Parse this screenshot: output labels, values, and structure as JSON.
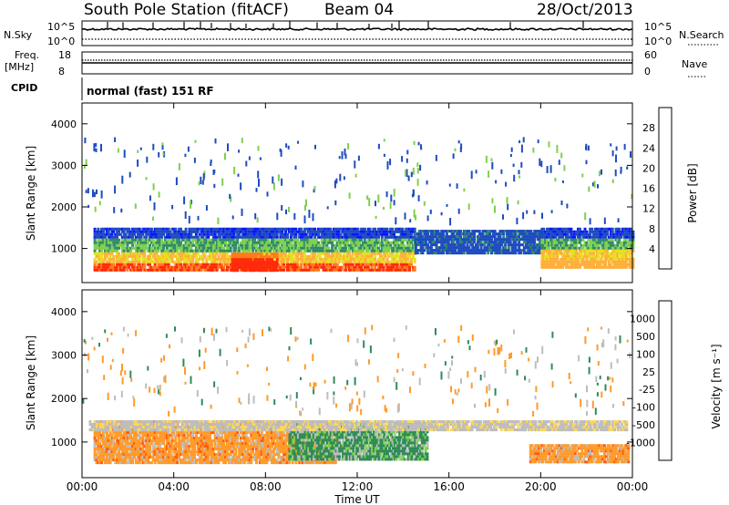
{
  "header": {
    "station": "South Pole Station (fitACF)",
    "beam": "Beam 04",
    "date": "28/Oct/2013"
  },
  "top_panels": {
    "nsky_label": "N.Sky",
    "nsky_ticks": [
      "10^5",
      "10^0"
    ],
    "nsearch_label": "N.Search",
    "nsearch_ticks": [
      "10^5",
      "10^0"
    ],
    "freq_label_1": "Freq.",
    "freq_label_2": "[MHz]",
    "freq_ticks": [
      "18",
      "8"
    ],
    "nave_label": "Nave",
    "nave_ticks": [
      "60",
      "0"
    ],
    "cpid_label": "CPID",
    "cpid_value": "normal (fast) 151 RF"
  },
  "chart_data": [
    {
      "type": "heatmap",
      "name": "power",
      "ylabel": "Slant Range [km]",
      "xlabel": "",
      "xlim": [
        0,
        24
      ],
      "ylim": [
        180,
        4500
      ],
      "y_ticks": [
        "1000",
        "2000",
        "3000",
        "4000"
      ],
      "colorbar": {
        "label": "Power [dB]",
        "ticks": [
          "4",
          "8",
          "12",
          "16",
          "20",
          "24",
          "28"
        ],
        "colors": [
          "#0a14ff",
          "#1e4bbf",
          "#2f8a6b",
          "#7fd04c",
          "#e6e01e",
          "#ffae3a",
          "#ff7a1a",
          "#ff2a0a"
        ]
      },
      "echo_bands": [
        {
          "t_start": 0.5,
          "t_end": 14.5,
          "range_low": 500,
          "range_high": 1500,
          "level": "green-red"
        },
        {
          "t_start": 14.5,
          "t_end": 20.0,
          "range_low": 900,
          "range_high": 1450,
          "level": "blue"
        },
        {
          "t_start": 20.0,
          "t_end": 24.0,
          "range_low": 550,
          "range_high": 1500,
          "level": "green-orange"
        },
        {
          "t_start": 6.5,
          "t_end": 8.5,
          "range_low": 500,
          "range_high": 900,
          "level": "red"
        }
      ]
    },
    {
      "type": "heatmap",
      "name": "velocity",
      "ylabel": "Slant Range [km]",
      "xlabel": "Time UT",
      "xlim": [
        0,
        24
      ],
      "ylim": [
        180,
        4500
      ],
      "y_ticks": [
        "1000",
        "2000",
        "3000",
        "4000"
      ],
      "x_ticks": [
        "00:00",
        "04:00",
        "08:00",
        "12:00",
        "16:00",
        "20:00",
        "00:00"
      ],
      "colorbar": {
        "label": "Velocity [m s⁻¹]",
        "ticks": [
          "1000",
          "500",
          "100",
          "25",
          "-25",
          "-100",
          "-500",
          "-1000"
        ],
        "colors": [
          "#2a38c8",
          "#3c78c8",
          "#2e8b57",
          "#7fd04c",
          "#bdbdbd",
          "#ffd65a",
          "#ff9a2a",
          "#ff5a14",
          "#ff1a0a"
        ]
      },
      "echo_bands": [
        {
          "t_start": 0.5,
          "t_end": 11.0,
          "range_low": 500,
          "range_high": 1500,
          "level": "orange"
        },
        {
          "t_start": 9.0,
          "t_end": 15.0,
          "range_low": 600,
          "range_high": 1450,
          "level": "green"
        },
        {
          "t_start": 0.3,
          "t_end": 23.7,
          "range_low": 1300,
          "range_high": 1500,
          "level": "grey"
        },
        {
          "t_start": 19.5,
          "t_end": 23.8,
          "range_low": 550,
          "range_high": 950,
          "level": "orange"
        }
      ]
    }
  ]
}
